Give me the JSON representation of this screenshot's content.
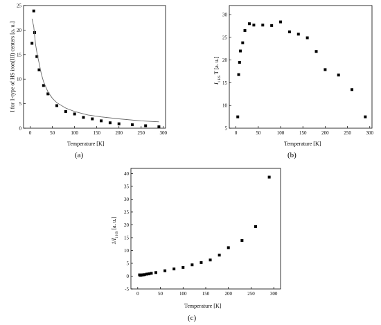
{
  "chart_data": [
    {
      "type": "scatter",
      "panel_label": "(a)",
      "xlabel": "Temperature [K]",
      "ylabel": "I for 1-type of HS iron(III) centers [a. u.]",
      "xlim": [
        -15,
        305
      ],
      "ylim": [
        0,
        25
      ],
      "xticks": [
        0,
        50,
        100,
        150,
        200,
        250,
        300
      ],
      "yticks": [
        0,
        5,
        10,
        15,
        20,
        25
      ],
      "series": [
        {
          "kind": "points",
          "x": [
            4,
            8,
            10,
            15,
            20,
            30,
            40,
            60,
            80,
            100,
            120,
            140,
            160,
            180,
            200,
            230,
            260,
            290
          ],
          "y": [
            17.3,
            23.9,
            19.5,
            14.6,
            11.9,
            8.7,
            7.0,
            4.6,
            3.4,
            2.9,
            2.2,
            1.9,
            1.5,
            1.1,
            0.9,
            0.7,
            0.5,
            0.3
          ]
        },
        {
          "kind": "fit-curve",
          "x": [
            4,
            8,
            12,
            16,
            20,
            25,
            30,
            40,
            50,
            60,
            80,
            100,
            130,
            160,
            200,
            250,
            290
          ],
          "y": [
            22.3,
            20.7,
            17.1,
            14.9,
            13.3,
            11.1,
            9.5,
            7.4,
            6.1,
            5.2,
            4.1,
            3.4,
            2.7,
            2.3,
            1.9,
            1.5,
            1.3
          ]
        }
      ]
    },
    {
      "type": "scatter",
      "panel_label": "(b)",
      "xlabel": "Temperature [K]",
      "ylabel_main": "I",
      "ylabel_sub": "1 HS",
      "ylabel_rest": "T [a. u.]",
      "xlim": [
        -15,
        305
      ],
      "ylim": [
        5,
        32
      ],
      "xticks": [
        0,
        50,
        100,
        150,
        200,
        250,
        300
      ],
      "yticks": [
        5,
        10,
        15,
        20,
        25,
        30
      ],
      "series": [
        {
          "kind": "points",
          "x": [
            4,
            6,
            8,
            10,
            15,
            20,
            30,
            40,
            60,
            80,
            100,
            120,
            140,
            160,
            180,
            200,
            230,
            260,
            290
          ],
          "y": [
            7.5,
            16.8,
            19.5,
            22.0,
            23.8,
            26.5,
            28.0,
            27.7,
            27.7,
            27.6,
            28.4,
            26.2,
            25.7,
            24.9,
            21.9,
            17.9,
            16.7,
            13.5,
            7.5
          ]
        }
      ]
    },
    {
      "type": "scatter",
      "panel_label": "(c)",
      "xlabel": "Temperature [K]",
      "ylabel_main": "1/I",
      "ylabel_sub": "1 HS",
      "ylabel_rest": "[a. u.]",
      "xlim": [
        -15,
        315
      ],
      "ylim": [
        -5,
        42
      ],
      "xticks": [
        0,
        50,
        100,
        150,
        200,
        250,
        300
      ],
      "yticks": [
        -5,
        0,
        5,
        10,
        15,
        20,
        25,
        30,
        35,
        40
      ],
      "series": [
        {
          "kind": "points",
          "x": [
            4,
            6,
            8,
            10,
            12,
            15,
            20,
            25,
            30,
            40,
            60,
            80,
            100,
            120,
            140,
            160,
            180,
            200,
            230,
            260,
            290
          ],
          "y": [
            0.5,
            0.3,
            0.4,
            0.5,
            0.5,
            0.6,
            0.8,
            0.9,
            1.1,
            1.4,
            2.1,
            2.8,
            3.4,
            4.4,
            5.3,
            6.3,
            8.2,
            11.1,
            13.9,
            19.3,
            38.6
          ]
        }
      ]
    }
  ]
}
